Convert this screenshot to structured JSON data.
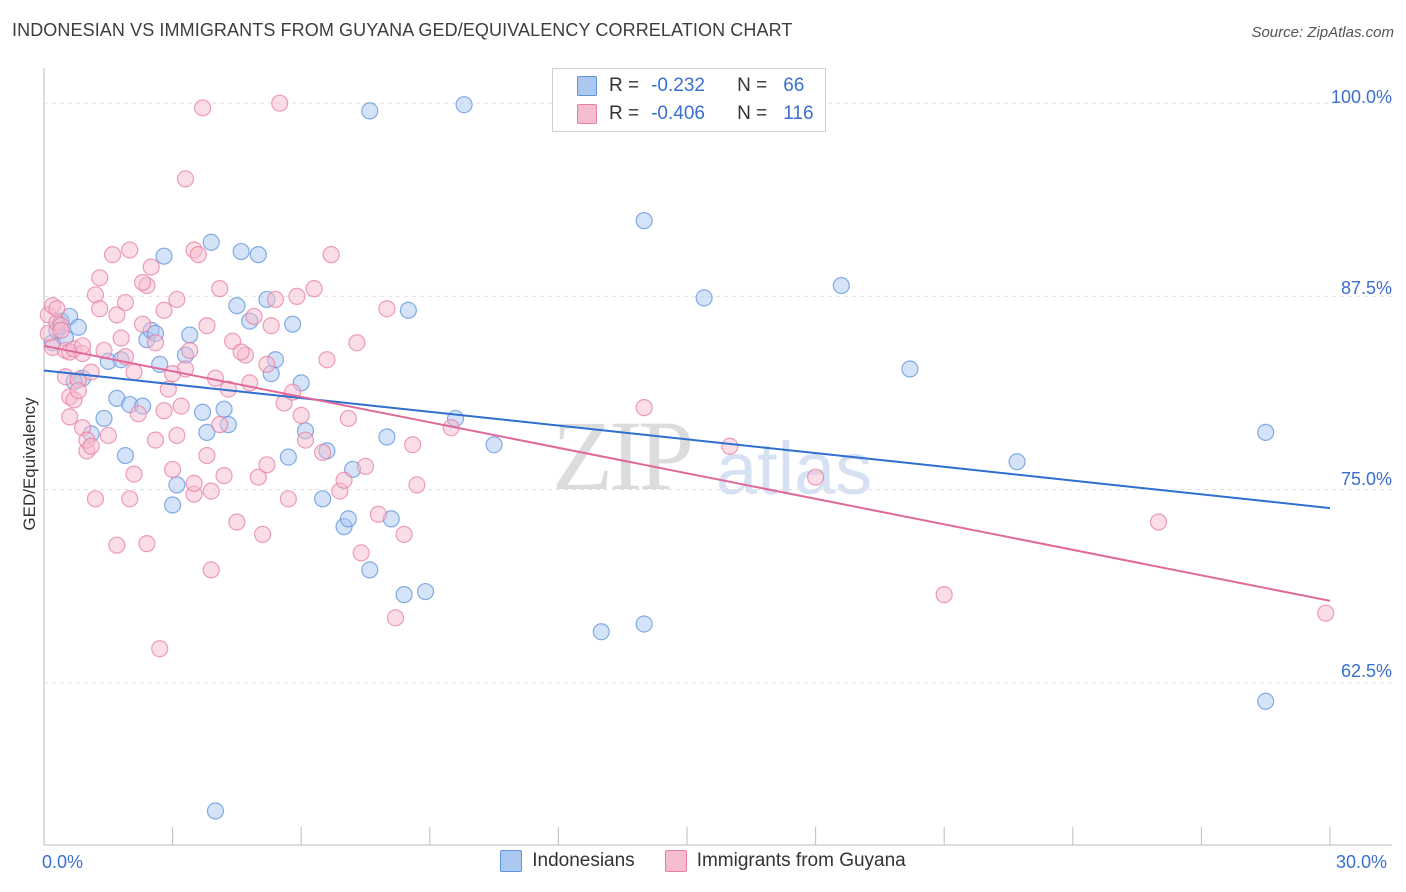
{
  "header": {
    "title": "INDONESIAN VS IMMIGRANTS FROM GUYANA GED/EQUIVALENCY CORRELATION CHART",
    "source": "Source: ZipAtlas.com"
  },
  "watermark": {
    "zip": "ZIP",
    "atlas": "atlas"
  },
  "legend": {
    "r_label": "R =",
    "n_label": "N =",
    "rows": [
      {
        "r": "-0.232",
        "n": "66"
      },
      {
        "r": "-0.406",
        "n": "116"
      }
    ]
  },
  "colors": {
    "blue_fill": "#aac8f0",
    "blue_stroke": "#5f93dc",
    "blue_line": "#2f6fcf",
    "pink_fill": "#f5bcd0",
    "pink_stroke": "#e87fa3",
    "pink_line": "#e0699a",
    "axis_text": "#3a6fd0",
    "grid": "#e0e0e0"
  },
  "axis": {
    "ylabel": "GED/Equivalency",
    "x_min_label": "0.0%",
    "x_max_label": "30.0%",
    "y_ticks": [
      "100.0%",
      "87.5%",
      "75.0%",
      "62.5%"
    ]
  },
  "chart_data": {
    "type": "scatter",
    "title": "INDONESIAN VS IMMIGRANTS FROM GUYANA GED/EQUIVALENCY CORRELATION CHART",
    "xlabel": "",
    "ylabel": "GED/Equivalency",
    "xlim": [
      0,
      30
    ],
    "ylim": [
      52,
      101.5
    ],
    "y_ticks": [
      100,
      87.5,
      75,
      62.5
    ],
    "series": [
      {
        "name": "Indonesians",
        "r": -0.232,
        "n": 66,
        "trend": {
          "x": [
            0,
            30
          ],
          "y": [
            82.7,
            73.8
          ]
        },
        "points": [
          [
            0.2,
            84.5
          ],
          [
            0.3,
            85.3
          ],
          [
            0.4,
            85.9
          ],
          [
            0.5,
            84.8
          ],
          [
            0.6,
            86.2
          ],
          [
            0.8,
            85.5
          ],
          [
            0.9,
            82.2
          ],
          [
            1.1,
            78.6
          ],
          [
            1.4,
            79.6
          ],
          [
            1.5,
            83.3
          ],
          [
            1.7,
            80.9
          ],
          [
            1.8,
            83.4
          ],
          [
            1.9,
            77.2
          ],
          [
            2.0,
            80.5
          ],
          [
            2.3,
            80.4
          ],
          [
            2.4,
            84.7
          ],
          [
            2.5,
            85.3
          ],
          [
            2.7,
            83.1
          ],
          [
            2.8,
            90.1
          ],
          [
            3.0,
            74.0
          ],
          [
            3.1,
            75.3
          ],
          [
            3.3,
            83.7
          ],
          [
            3.4,
            85.0
          ],
          [
            3.7,
            80.0
          ],
          [
            3.8,
            78.7
          ],
          [
            3.9,
            91.0
          ],
          [
            4.0,
            54.2
          ],
          [
            4.2,
            80.2
          ],
          [
            4.3,
            79.2
          ],
          [
            4.5,
            86.9
          ],
          [
            4.6,
            90.4
          ],
          [
            4.8,
            85.9
          ],
          [
            5.0,
            90.2
          ],
          [
            5.2,
            87.3
          ],
          [
            5.3,
            82.5
          ],
          [
            5.4,
            83.4
          ],
          [
            5.7,
            77.1
          ],
          [
            5.8,
            85.7
          ],
          [
            6.0,
            81.9
          ],
          [
            6.1,
            78.8
          ],
          [
            6.5,
            74.4
          ],
          [
            6.6,
            77.5
          ],
          [
            7.0,
            72.6
          ],
          [
            7.1,
            73.1
          ],
          [
            7.2,
            76.3
          ],
          [
            7.6,
            69.8
          ],
          [
            8.0,
            78.4
          ],
          [
            8.1,
            73.1
          ],
          [
            8.5,
            86.6
          ],
          [
            8.4,
            68.2
          ],
          [
            8.9,
            68.4
          ],
          [
            9.6,
            79.6
          ],
          [
            9.8,
            99.9
          ],
          [
            10.5,
            77.9
          ],
          [
            13.0,
            65.8
          ],
          [
            14.0,
            92.4
          ],
          [
            14.0,
            66.3
          ],
          [
            15.4,
            87.4
          ],
          [
            7.6,
            99.5
          ],
          [
            18.6,
            88.2
          ],
          [
            20.2,
            82.8
          ],
          [
            22.7,
            76.8
          ],
          [
            28.5,
            78.7
          ],
          [
            28.5,
            61.3
          ],
          [
            0.7,
            82.0
          ],
          [
            2.6,
            85.1
          ]
        ]
      },
      {
        "name": "Immigrants from Guyana",
        "r": -0.406,
        "n": 116,
        "trend": {
          "x": [
            0,
            30
          ],
          "y": [
            84.3,
            67.8
          ]
        },
        "points": [
          [
            0.1,
            86.3
          ],
          [
            0.1,
            85.1
          ],
          [
            0.2,
            86.9
          ],
          [
            0.2,
            84.2
          ],
          [
            0.3,
            85.8
          ],
          [
            0.3,
            86.7
          ],
          [
            0.4,
            85.6
          ],
          [
            0.5,
            84.0
          ],
          [
            0.5,
            82.3
          ],
          [
            0.6,
            83.9
          ],
          [
            0.6,
            81.0
          ],
          [
            0.7,
            80.8
          ],
          [
            0.7,
            84.1
          ],
          [
            0.8,
            82.1
          ],
          [
            0.8,
            81.4
          ],
          [
            0.9,
            83.8
          ],
          [
            0.9,
            79.0
          ],
          [
            1.0,
            77.5
          ],
          [
            1.0,
            78.2
          ],
          [
            1.1,
            77.8
          ],
          [
            1.1,
            82.6
          ],
          [
            1.2,
            87.6
          ],
          [
            1.3,
            86.7
          ],
          [
            1.3,
            88.7
          ],
          [
            1.4,
            84.0
          ],
          [
            1.5,
            78.5
          ],
          [
            1.6,
            90.2
          ],
          [
            1.7,
            71.4
          ],
          [
            1.7,
            86.3
          ],
          [
            1.8,
            84.8
          ],
          [
            1.9,
            83.6
          ],
          [
            1.9,
            87.1
          ],
          [
            2.0,
            90.5
          ],
          [
            2.0,
            74.4
          ],
          [
            2.1,
            76.0
          ],
          [
            2.1,
            82.6
          ],
          [
            2.2,
            79.9
          ],
          [
            2.3,
            85.7
          ],
          [
            2.4,
            88.2
          ],
          [
            2.4,
            71.5
          ],
          [
            2.5,
            89.4
          ],
          [
            2.6,
            84.5
          ],
          [
            2.6,
            78.2
          ],
          [
            2.7,
            64.7
          ],
          [
            2.8,
            86.6
          ],
          [
            2.9,
            81.5
          ],
          [
            3.0,
            82.5
          ],
          [
            3.0,
            76.3
          ],
          [
            3.1,
            87.3
          ],
          [
            3.2,
            80.4
          ],
          [
            3.3,
            95.1
          ],
          [
            3.3,
            82.8
          ],
          [
            3.4,
            84.0
          ],
          [
            3.5,
            90.5
          ],
          [
            3.5,
            74.7
          ],
          [
            3.6,
            90.2
          ],
          [
            3.7,
            99.7
          ],
          [
            3.8,
            85.6
          ],
          [
            3.8,
            77.2
          ],
          [
            3.9,
            69.8
          ],
          [
            4.0,
            82.2
          ],
          [
            4.1,
            88.0
          ],
          [
            4.2,
            75.9
          ],
          [
            4.3,
            81.5
          ],
          [
            4.4,
            84.6
          ],
          [
            4.5,
            72.9
          ],
          [
            4.7,
            83.7
          ],
          [
            4.8,
            81.9
          ],
          [
            4.9,
            86.2
          ],
          [
            5.0,
            75.8
          ],
          [
            5.1,
            72.1
          ],
          [
            5.2,
            83.1
          ],
          [
            5.3,
            85.6
          ],
          [
            5.4,
            87.3
          ],
          [
            5.6,
            80.6
          ],
          [
            5.7,
            74.4
          ],
          [
            5.8,
            81.3
          ],
          [
            5.9,
            87.5
          ],
          [
            6.0,
            79.8
          ],
          [
            6.1,
            78.2
          ],
          [
            6.3,
            88.0
          ],
          [
            6.5,
            77.4
          ],
          [
            6.6,
            83.4
          ],
          [
            6.7,
            90.2
          ],
          [
            6.9,
            74.9
          ],
          [
            7.1,
            79.6
          ],
          [
            7.3,
            84.5
          ],
          [
            7.4,
            70.9
          ],
          [
            7.5,
            76.5
          ],
          [
            7.8,
            73.4
          ],
          [
            8.0,
            86.7
          ],
          [
            8.2,
            66.7
          ],
          [
            8.4,
            72.1
          ],
          [
            8.6,
            77.9
          ],
          [
            4.6,
            83.9
          ],
          [
            0.9,
            84.3
          ],
          [
            2.3,
            88.4
          ],
          [
            3.1,
            78.5
          ],
          [
            3.9,
            74.9
          ],
          [
            0.4,
            85.3
          ],
          [
            5.5,
            100.0
          ],
          [
            9.5,
            79.0
          ],
          [
            8.7,
            75.3
          ],
          [
            7.0,
            75.6
          ],
          [
            1.2,
            74.4
          ],
          [
            2.8,
            80.1
          ],
          [
            3.5,
            75.4
          ],
          [
            0.6,
            79.7
          ],
          [
            14.0,
            80.3
          ],
          [
            16.0,
            77.8
          ],
          [
            18.0,
            75.8
          ],
          [
            21.0,
            68.2
          ],
          [
            26.0,
            72.9
          ],
          [
            29.9,
            67.0
          ],
          [
            5.2,
            76.6
          ],
          [
            4.1,
            79.2
          ]
        ]
      }
    ]
  }
}
